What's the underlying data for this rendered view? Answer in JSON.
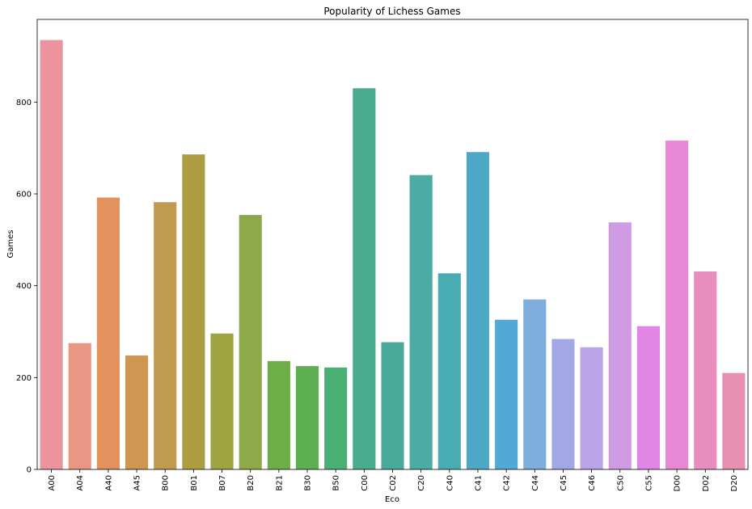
{
  "chart_data": {
    "type": "bar",
    "title": "Popularity of Lichess Games",
    "xlabel": "Eco",
    "ylabel": "Games",
    "ylim": [
      0,
      980
    ],
    "yticks": [
      0,
      200,
      400,
      600,
      800
    ],
    "grid": false,
    "legend": "none",
    "categories": [
      "A00",
      "A04",
      "A40",
      "A45",
      "B00",
      "B01",
      "B07",
      "B20",
      "B21",
      "B30",
      "B50",
      "C00",
      "C02",
      "C20",
      "C40",
      "C41",
      "C42",
      "C44",
      "C45",
      "C46",
      "C50",
      "C55",
      "D00",
      "D02",
      "D20"
    ],
    "values": [
      935,
      275,
      592,
      248,
      582,
      686,
      296,
      554,
      236,
      225,
      222,
      830,
      277,
      641,
      427,
      691,
      326,
      370,
      284,
      266,
      538,
      312,
      716,
      431,
      210
    ],
    "colors": [
      "#ec939e",
      "#e99684",
      "#e3915d",
      "#ce9651",
      "#bf9a4f",
      "#ad9c42",
      "#9ea441",
      "#8da94a",
      "#6dae47",
      "#5daf52",
      "#4aaf72",
      "#49ac8f",
      "#4aaa9a",
      "#4caba4",
      "#4aacb3",
      "#4ca8c6",
      "#52a9d6",
      "#7eaedc",
      "#a1a8e3",
      "#b8a4e6",
      "#cf9be5",
      "#e186e5",
      "#e888d5",
      "#e98dbe",
      "#e98fb1"
    ]
  }
}
